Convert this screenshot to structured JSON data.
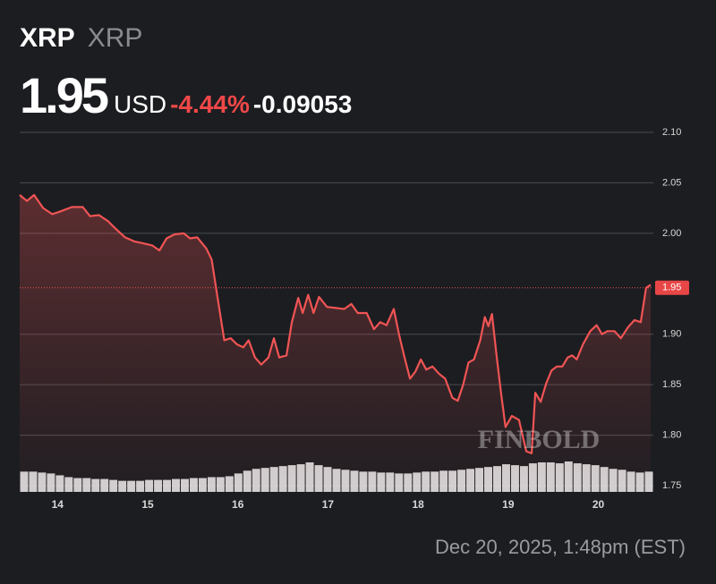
{
  "chart_data": {
    "type": "line",
    "symbol": "XRP",
    "name": "XRP",
    "price": "1.95",
    "currency": "USD",
    "change_percent": "-4.44%",
    "change": "-0.09053",
    "timestamp": "Dec 20, 2025, 1:48pm (EST)",
    "watermark": "FINBOLD",
    "x": [
      13.58,
      13.66,
      13.74,
      13.84,
      13.94,
      14.01,
      14.16,
      14.28,
      14.36,
      14.46,
      14.56,
      14.65,
      14.75,
      14.85,
      14.95,
      15.05,
      15.13,
      15.21,
      15.3,
      15.4,
      15.47,
      15.55,
      15.65,
      15.71,
      15.77,
      15.85,
      15.92,
      15.99,
      16.06,
      16.12,
      16.19,
      16.26,
      16.34,
      16.4,
      16.46,
      16.54,
      16.6,
      16.67,
      16.72,
      16.78,
      16.84,
      16.9,
      16.99,
      17.09,
      17.18,
      17.26,
      17.33,
      17.43,
      17.51,
      17.58,
      17.65,
      17.73,
      17.79,
      17.85,
      17.91,
      17.97,
      18.03,
      18.09,
      18.16,
      18.23,
      18.3,
      18.38,
      18.44,
      18.5,
      18.56,
      18.62,
      18.69,
      18.74,
      18.78,
      18.82,
      18.87,
      18.92,
      18.97,
      19.04,
      19.12,
      19.2,
      19.26,
      19.3,
      19.36,
      19.42,
      19.48,
      19.54,
      19.6,
      19.66,
      19.71,
      19.76,
      19.83,
      19.91,
      19.98,
      20.04,
      20.1,
      20.18,
      20.25,
      20.33,
      20.4,
      20.47,
      20.53,
      20.58
    ],
    "series": [
      {
        "name": "XRP",
        "color": "#f05454",
        "values": [
          2.038,
          2.032,
          2.038,
          2.025,
          2.019,
          2.021,
          2.026,
          2.026,
          2.017,
          2.018,
          2.012,
          2.004,
          1.996,
          1.992,
          1.99,
          1.988,
          1.983,
          1.995,
          1.999,
          2.0,
          1.995,
          1.996,
          1.985,
          1.974,
          1.939,
          1.894,
          1.896,
          1.89,
          1.887,
          1.894,
          1.877,
          1.87,
          1.877,
          1.896,
          1.877,
          1.879,
          1.912,
          1.936,
          1.921,
          1.939,
          1.921,
          1.937,
          1.927,
          1.926,
          1.925,
          1.93,
          1.921,
          1.921,
          1.905,
          1.912,
          1.909,
          1.925,
          1.899,
          1.877,
          1.856,
          1.863,
          1.875,
          1.865,
          1.868,
          1.861,
          1.856,
          1.837,
          1.834,
          1.85,
          1.872,
          1.875,
          1.894,
          1.917,
          1.908,
          1.92,
          1.879,
          1.842,
          1.808,
          1.819,
          1.815,
          1.784,
          1.782,
          1.842,
          1.833,
          1.851,
          1.864,
          1.868,
          1.868,
          1.877,
          1.879,
          1.875,
          1.89,
          1.903,
          1.909,
          1.9,
          1.903,
          1.903,
          1.896,
          1.907,
          1.914,
          1.912,
          1.946,
          1.949
        ]
      }
    ],
    "volume": {
      "color": "#e6e6e6",
      "values": [
        22,
        22,
        21,
        20,
        18,
        16,
        15,
        15,
        14,
        14,
        13,
        12,
        12,
        12,
        13,
        13,
        13,
        14,
        14,
        15,
        15,
        16,
        16,
        17,
        20,
        23,
        25,
        26,
        27,
        28,
        29,
        30,
        32,
        29,
        27,
        25,
        24,
        23,
        22,
        22,
        21,
        21,
        20,
        20,
        21,
        22,
        22,
        23,
        23,
        24,
        25,
        26,
        27,
        28,
        30,
        29,
        28,
        31,
        32,
        32,
        31,
        33,
        31,
        30,
        29,
        27,
        25,
        24,
        22,
        21,
        22
      ]
    },
    "current_price": {
      "value": 1.946,
      "label": "1.95"
    },
    "xlim": [
      13.58,
      20.61
    ],
    "xticks": [
      14,
      15,
      16,
      17,
      18,
      19,
      20
    ],
    "ylim": [
      1.75,
      2.1
    ],
    "yticks": [
      1.75,
      {
        "value": 1.8,
        "label": "1.80"
      },
      1.85,
      {
        "value": 1.9,
        "label": "1.90"
      },
      {
        "value": 2.0,
        "label": "2.00"
      },
      2.05,
      {
        "value": 2.1,
        "label": "2.10"
      }
    ],
    "grid": true
  }
}
